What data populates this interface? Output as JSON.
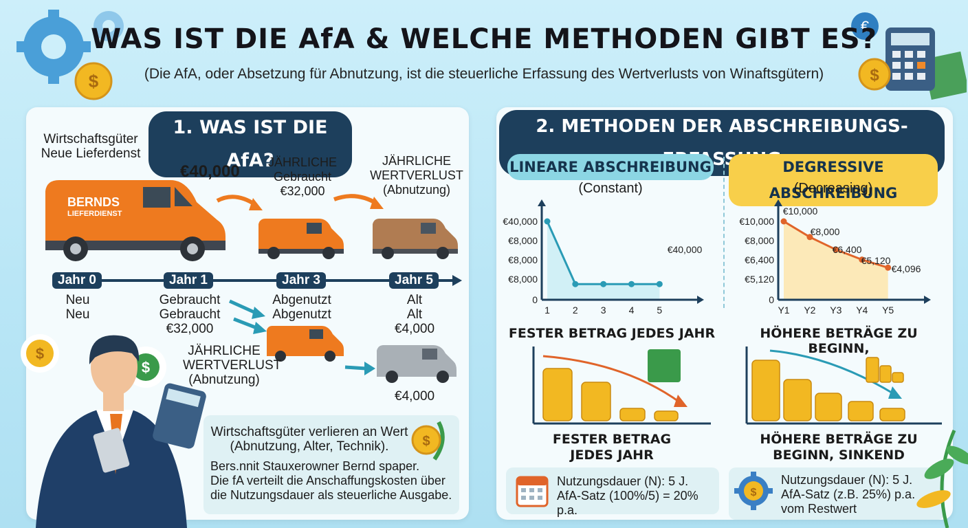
{
  "header": {
    "title": "WAS IST DIE AfA & WELCHE METHODEN GIBT ES?",
    "subtitle": "(Die AfA, oder Absetzung für Abnutzung, ist die steuerliche Erfassung des Wertverlusts von Winaftsgütern)"
  },
  "section1": {
    "title": "1. WAS IST DIE AfA?",
    "goods_label": "Wirtschaftsgüter\nNeue Lieferdenst",
    "van_brand": "BERNDS",
    "van_sub": "LIEFERDIENST",
    "price_initial": "€40,000",
    "step1": "JÄHRLICHE\nGebraucht\n€32,000",
    "step2": "JÄHRLICHE\nWERTVERLUST\n(Abnutzung)",
    "timeline": [
      {
        "year": "Jahr 0",
        "status": "Neu\nNeu"
      },
      {
        "year": "Jahr 1",
        "status": "Gebraucht\nGebraucht\n€32,000"
      },
      {
        "year": "Jahr 3",
        "status": "Abgenutzt\nAbgenutzt"
      },
      {
        "year": "Jahr 5",
        "status": "Alt\nAlt\n€4,000"
      }
    ],
    "mid_label": "JÄHRLICHE\nWERTVERLUST\n(Abnutzung)",
    "final_value": "€4,000",
    "note_title": "Wirtschaftsgüter verlieren an Wert\n(Abnutzung, Alter, Technik).",
    "note_body": "Bers.nnit Stauxerowner Bernd spaper.\nDie fA verteilt die Anschaffungskosten über\ndie Nutzungsdauer als steuerliche Ausgabe."
  },
  "section2": {
    "title": "2. METHODEN DER ABSCHREIBUNGS-ERFASSUNG",
    "linear": {
      "name": "LINEARE ABSCHREIBUNG",
      "mode": "(Constant)",
      "heading": "FESTER BETRAG JEDES JAHR",
      "caption": "FESTER BETRAG\nJEDES JAHR",
      "info": "Nutzungsdauer (N): 5 J.\nAfA-Satz (100%/5) = 20% p.a."
    },
    "degressive": {
      "name": "DEGRESSIVE ABSCHREIBUNG",
      "mode": "(Decreasing)",
      "heading": "HÖHERE BETRÄGE ZU BEGINN,",
      "caption": "HÖHERE BETRÄGE ZU\nBEGINN, SINKEND",
      "info": "Nutzungsdauer (N): 5 J.\nAfA-Satz (z.B. 25%) p.a.\nvom Restwert"
    }
  },
  "chart_data": [
    {
      "type": "line",
      "categories": [
        "1",
        "2",
        "3",
        "4",
        "5"
      ],
      "values": [
        40000,
        8000,
        8000,
        8000,
        8000
      ],
      "ytick_labels": [
        "€40,000",
        "€8,000",
        "€8,000",
        "€8,000",
        "0"
      ],
      "data_labels": [
        "€40,000"
      ],
      "fill": true,
      "color": "#2a9bb5"
    },
    {
      "type": "line",
      "categories": [
        "Y1",
        "Y2",
        "Y3",
        "Y4",
        "Y5"
      ],
      "values": [
        10000,
        8000,
        6400,
        5120,
        4096
      ],
      "ytick_labels": [
        "€10,000",
        "€8,000",
        "€6,400",
        "€5,120",
        "0"
      ],
      "data_labels": [
        "€10,000",
        "€8,000",
        "€6,400",
        "€5,120",
        "€4,096"
      ],
      "fill": true,
      "color": "#e0642a"
    }
  ],
  "colors": {
    "navy": "#1d3f5c",
    "teal": "#2a9bb5",
    "orange": "#e8741f",
    "gold": "#f2b822",
    "green": "#3a9a4a"
  }
}
